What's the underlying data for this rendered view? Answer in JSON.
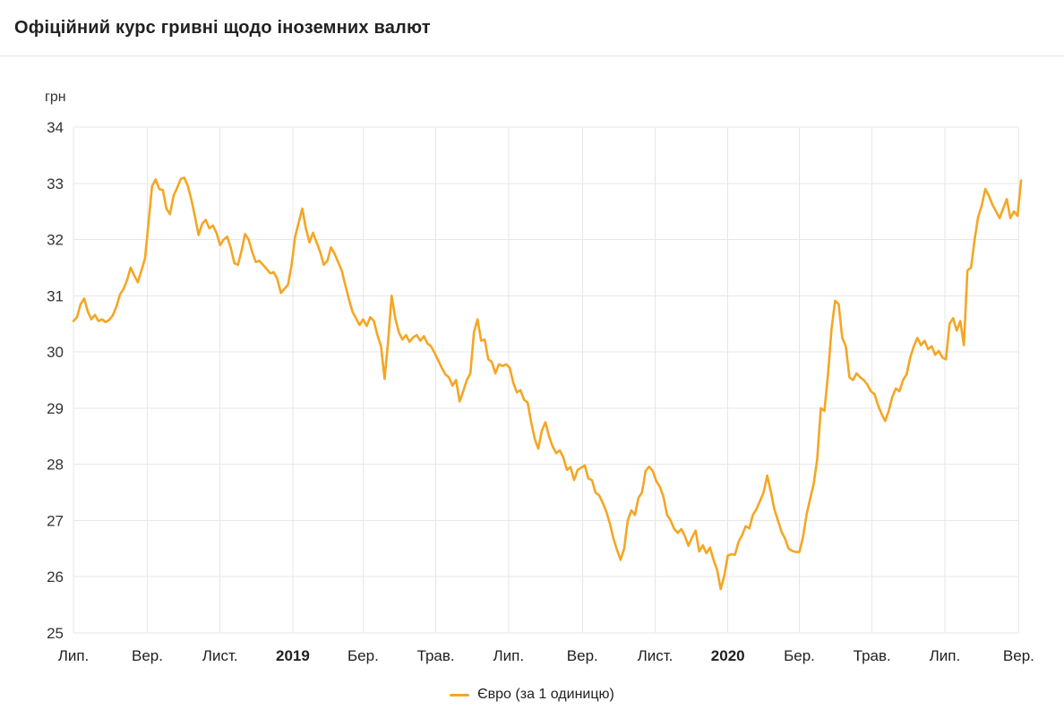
{
  "header": {
    "title": "Офіційний курс гривні щодо іноземних валют"
  },
  "chart_data": {
    "type": "line",
    "title": "Офіційний курс гривні щодо іноземних валют",
    "unit_label": "грн",
    "grid": true,
    "legend": {
      "label": "Євро (за 1 одиницю)",
      "position": "bottom-center"
    },
    "y_axis": {
      "min": 25,
      "max": 34,
      "ticks": [
        25,
        26,
        27,
        28,
        29,
        30,
        31,
        32,
        33,
        34
      ]
    },
    "x_axis": {
      "total_days": 795,
      "ticks": [
        {
          "label": "Лип.",
          "day": 0,
          "bold": false
        },
        {
          "label": "Вер.",
          "day": 62,
          "bold": false
        },
        {
          "label": "Лист.",
          "day": 123,
          "bold": false
        },
        {
          "label": "2019",
          "day": 184,
          "bold": true
        },
        {
          "label": "Бер.",
          "day": 243,
          "bold": false
        },
        {
          "label": "Трав.",
          "day": 304,
          "bold": false
        },
        {
          "label": "Лип.",
          "day": 365,
          "bold": false
        },
        {
          "label": "Вер.",
          "day": 427,
          "bold": false
        },
        {
          "label": "Лист.",
          "day": 488,
          "bold": false
        },
        {
          "label": "2020",
          "day": 549,
          "bold": true
        },
        {
          "label": "Бер.",
          "day": 609,
          "bold": false
        },
        {
          "label": "Трав.",
          "day": 670,
          "bold": false
        },
        {
          "label": "Лип.",
          "day": 731,
          "bold": false
        },
        {
          "label": "Вер.",
          "day": 793,
          "bold": false
        }
      ]
    },
    "series": [
      {
        "name": "Євро (за 1 одиницю)",
        "color": "#F5A623",
        "start": "2018-07-01",
        "sample_interval_days": 3,
        "values": [
          30.55,
          30.62,
          30.85,
          30.95,
          30.72,
          30.58,
          30.66,
          30.55,
          30.58,
          30.53,
          30.57,
          30.65,
          30.8,
          31.02,
          31.12,
          31.28,
          31.5,
          31.36,
          31.24,
          31.45,
          31.66,
          32.3,
          32.95,
          33.07,
          32.9,
          32.88,
          32.55,
          32.45,
          32.78,
          32.92,
          33.08,
          33.1,
          32.95,
          32.7,
          32.4,
          32.08,
          32.28,
          32.35,
          32.2,
          32.25,
          32.12,
          31.9,
          32.0,
          32.05,
          31.85,
          31.58,
          31.55,
          31.8,
          32.1,
          32.0,
          31.78,
          31.6,
          31.62,
          31.55,
          31.48,
          31.4,
          31.42,
          31.3,
          31.05,
          31.12,
          31.2,
          31.55,
          32.05,
          32.3,
          32.55,
          32.2,
          31.95,
          32.12,
          31.95,
          31.78,
          31.55,
          31.62,
          31.86,
          31.75,
          31.6,
          31.45,
          31.2,
          30.95,
          30.72,
          30.6,
          30.48,
          30.58,
          30.46,
          30.62,
          30.55,
          30.3,
          30.1,
          29.52,
          30.2,
          31.0,
          30.6,
          30.35,
          30.22,
          30.3,
          30.18,
          30.26,
          30.3,
          30.2,
          30.28,
          30.15,
          30.1,
          29.98,
          29.85,
          29.72,
          29.6,
          29.55,
          29.4,
          29.5,
          29.12,
          29.3,
          29.5,
          29.62,
          30.35,
          30.58,
          30.2,
          30.22,
          29.87,
          29.82,
          29.62,
          29.78,
          29.75,
          29.78,
          29.72,
          29.45,
          29.28,
          29.32,
          29.15,
          29.1,
          28.75,
          28.45,
          28.28,
          28.6,
          28.75,
          28.5,
          28.32,
          28.2,
          28.25,
          28.12,
          27.9,
          27.95,
          27.72,
          27.9,
          27.94,
          27.98,
          27.75,
          27.72,
          27.5,
          27.45,
          27.32,
          27.16,
          26.95,
          26.68,
          26.48,
          26.3,
          26.5,
          27.0,
          27.18,
          27.1,
          27.4,
          27.5,
          27.88,
          27.96,
          27.88,
          27.7,
          27.6,
          27.42,
          27.1,
          27.0,
          26.85,
          26.78,
          26.85,
          26.72,
          26.55,
          26.7,
          26.82,
          26.45,
          26.56,
          26.42,
          26.52,
          26.3,
          26.12,
          25.78,
          26.02,
          26.38,
          26.4,
          26.39,
          26.62,
          26.74,
          26.9,
          26.86,
          27.1,
          27.2,
          27.35,
          27.5,
          27.8,
          27.52,
          27.2,
          27.0,
          26.8,
          26.68,
          26.5,
          26.46,
          26.44,
          26.44,
          26.7,
          27.1,
          27.38,
          27.65,
          28.1,
          29.0,
          28.95,
          29.6,
          30.4,
          30.91,
          30.85,
          30.25,
          30.1,
          29.55,
          29.5,
          29.62,
          29.55,
          29.5,
          29.42,
          29.3,
          29.25,
          29.05,
          28.9,
          28.77,
          28.95,
          29.2,
          29.35,
          29.3,
          29.5,
          29.6,
          29.9,
          30.1,
          30.25,
          30.12,
          30.2,
          30.05,
          30.1,
          29.95,
          30.02,
          29.9,
          29.87,
          30.5,
          30.6,
          30.38,
          30.55,
          30.12,
          31.45,
          31.5,
          32.0,
          32.4,
          32.6,
          32.9,
          32.78,
          32.62,
          32.5,
          32.38,
          32.55,
          32.72,
          32.38,
          32.5,
          32.42,
          33.05
        ]
      }
    ]
  },
  "colors": {
    "accent_orange": "#F5A623",
    "grid": "#e7e7e7",
    "divider": "#e3e3e3",
    "text_dark": "#212121",
    "text_tick": "#333333"
  }
}
